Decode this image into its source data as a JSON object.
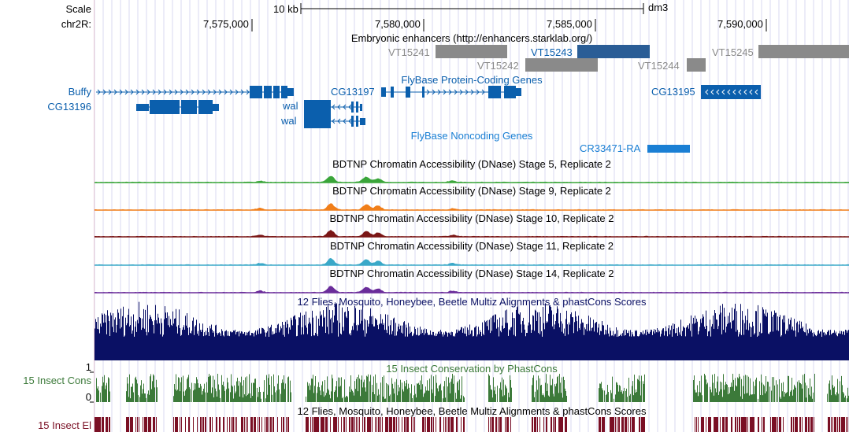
{
  "gutter": {
    "scale_label": "Scale",
    "chrom_label": "chr2R:",
    "buffy": "Buffy",
    "cg13196": "CG13196",
    "cons_track": "15 Insect Cons",
    "cons_max": "1",
    "cons_min": "0",
    "el_track": "15 Insect El"
  },
  "ruler": {
    "scale_text": "10 kb",
    "assembly": "dm3",
    "positions": [
      "7,575,000",
      "7,580,000",
      "7,585,000",
      "7,590,000"
    ]
  },
  "enhancers": {
    "title": "Embryonic enhancers (http://enhancers.starklab.org/)",
    "items": [
      "VT15241",
      "VT15242",
      "VT15243",
      "VT15244",
      "VT15245"
    ]
  },
  "genes": {
    "title": "FlyBase Protein-Coding Genes",
    "wal_1": "wal",
    "wal_2": "wal",
    "cg13197": "CG13197",
    "cg13195": "CG13195"
  },
  "noncoding": {
    "title": "FlyBase Noncoding Genes",
    "cr": "CR33471-RA"
  },
  "dnase": [
    {
      "title": "BDTNP Chromatin Accessibility (DNase) Stage 5, Replicate 2",
      "color": "#3aa53a"
    },
    {
      "title": "BDTNP Chromatin Accessibility (DNase) Stage 9, Replicate 2",
      "color": "#f07e1a"
    },
    {
      "title": "BDTNP Chromatin Accessibility (DNase) Stage 10, Replicate 2",
      "color": "#7a1616"
    },
    {
      "title": "BDTNP Chromatin Accessibility (DNase) Stage 11, Replicate 2",
      "color": "#3aa8c8"
    },
    {
      "title": "BDTNP Chromatin Accessibility (DNase) Stage 14, Replicate 2",
      "color": "#6a2c9a"
    }
  ],
  "multiz": {
    "title": "12 Flies, Mosquito, Honeybee, Beetle Multiz Alignments & phastCons Scores",
    "color": "#0a1064"
  },
  "cons": {
    "title": "15 Insect Conservation by PhastCons",
    "color": "#3c7a3a"
  },
  "elements": {
    "title": "12 Flies, Mosquito, Honeybee, Beetle Multiz Alignments & phastCons Scores",
    "color": "#7a0f24"
  },
  "colors": {
    "gene_blue": "#0b5fad",
    "enh_gray": "#8a8a8a",
    "enh_blue": "#2a5d96",
    "nc_blue": "#1a7fd4",
    "grid": "#d8d8f0"
  }
}
